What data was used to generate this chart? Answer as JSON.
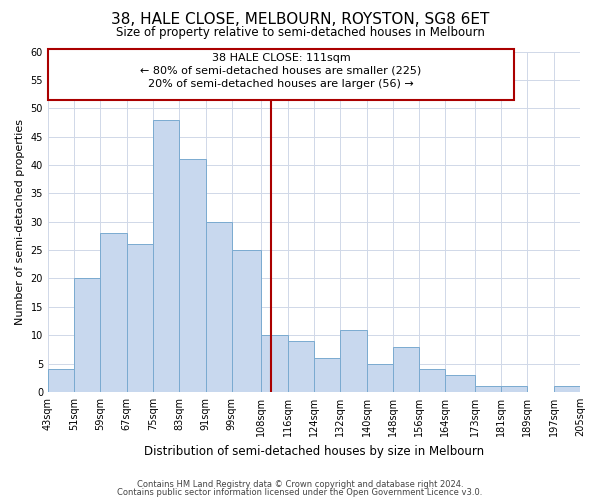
{
  "title": "38, HALE CLOSE, MELBOURN, ROYSTON, SG8 6ET",
  "subtitle": "Size of property relative to semi-detached houses in Melbourn",
  "xlabel": "Distribution of semi-detached houses by size in Melbourn",
  "ylabel": "Number of semi-detached properties",
  "footnote1": "Contains HM Land Registry data © Crown copyright and database right 2024.",
  "footnote2": "Contains public sector information licensed under the Open Government Licence v3.0.",
  "bin_labels": [
    "43sqm",
    "51sqm",
    "59sqm",
    "67sqm",
    "75sqm",
    "83sqm",
    "91sqm",
    "99sqm",
    "108sqm",
    "116sqm",
    "124sqm",
    "132sqm",
    "140sqm",
    "148sqm",
    "156sqm",
    "164sqm",
    "173sqm",
    "181sqm",
    "189sqm",
    "197sqm",
    "205sqm"
  ],
  "bar_values": [
    4,
    20,
    28,
    26,
    48,
    41,
    30,
    25,
    10,
    9,
    6,
    11,
    5,
    8,
    4,
    3,
    1,
    1,
    0,
    1
  ],
  "bin_edges": [
    43,
    51,
    59,
    67,
    75,
    83,
    91,
    99,
    108,
    116,
    124,
    132,
    140,
    148,
    156,
    164,
    173,
    181,
    189,
    197,
    205
  ],
  "property_size": 111,
  "smaller_pct": 80,
  "smaller_count": 225,
  "larger_pct": 20,
  "larger_count": 56,
  "bar_fill_color": "#c8d8ee",
  "bar_edge_color": "#7aaad0",
  "vline_color": "#aa0000",
  "box_edge_color": "#aa0000",
  "ylim": [
    0,
    60
  ],
  "yticks": [
    0,
    5,
    10,
    15,
    20,
    25,
    30,
    35,
    40,
    45,
    50,
    55,
    60
  ],
  "grid_color": "#d0d8e8",
  "background_color": "#ffffff",
  "title_fontsize": 11,
  "subtitle_fontsize": 8.5,
  "xlabel_fontsize": 8.5,
  "ylabel_fontsize": 8,
  "tick_fontsize": 7,
  "annot_fontsize": 8
}
